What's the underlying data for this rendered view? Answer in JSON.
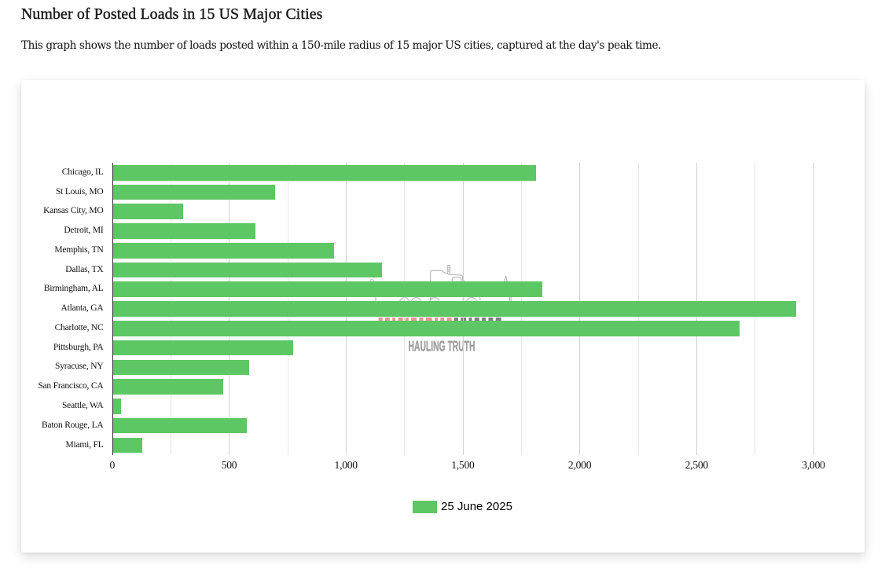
{
  "header": {
    "title": "Number of Posted Loads in 15 US Major Cities",
    "subtitle": "This graph shows the number of loads posted within a 150-mile radius of 15 major US cities, captured at the day's peak time."
  },
  "chart_data": {
    "type": "bar",
    "orientation": "horizontal",
    "title": "Number of Posted Loads in 15 US Major Cities",
    "categories": [
      "Chicago, IL",
      "St Louis, MO",
      "Kansas City, MO",
      "Detroit, MI",
      "Memphis, TN",
      "Dallas, TX",
      "Birmingham, AL",
      "Atlanta, GA",
      "Charlotte, NC",
      "Pittsburgh, PA",
      "Syracuse, NY",
      "San Francisco, CA",
      "Seattle, WA",
      "Baton Rouge, LA",
      "Miami, FL"
    ],
    "series": [
      {
        "name": "25 June 2025",
        "color": "#5ec765",
        "values": [
          1814,
          698,
          302,
          612,
          950,
          1155,
          1841,
          2926,
          2683,
          775,
          587,
          476,
          39,
          576,
          128
        ]
      }
    ],
    "xlim": [
      0,
      3000
    ],
    "x_tick_labels": [
      "0",
      "500",
      "1,000",
      "1,500",
      "2,000",
      "2,500",
      "3,000"
    ],
    "x_tick_step": 500,
    "x_minor_gridline_step": 250,
    "ylabel": "",
    "xlabel": "",
    "grid": "vertical",
    "legend_position": "bottom-center"
  },
  "legend": {
    "items": [
      {
        "label": "25 June 2025",
        "color": "#5ec765"
      }
    ]
  },
  "watermark": {
    "text": "HAULING TRUTH"
  },
  "colors": {
    "bar": "#5ec765",
    "axis_line": "#2f2f2f",
    "gridline_minor": "#e6e6e6",
    "gridline_major": "#d2d2d2",
    "watermark_stroke": "#bfbfbf",
    "watermark_text": "#9d9d9d",
    "road_dash_red": "#ee9393",
    "road_dash_gray": "#7e7e7e"
  }
}
